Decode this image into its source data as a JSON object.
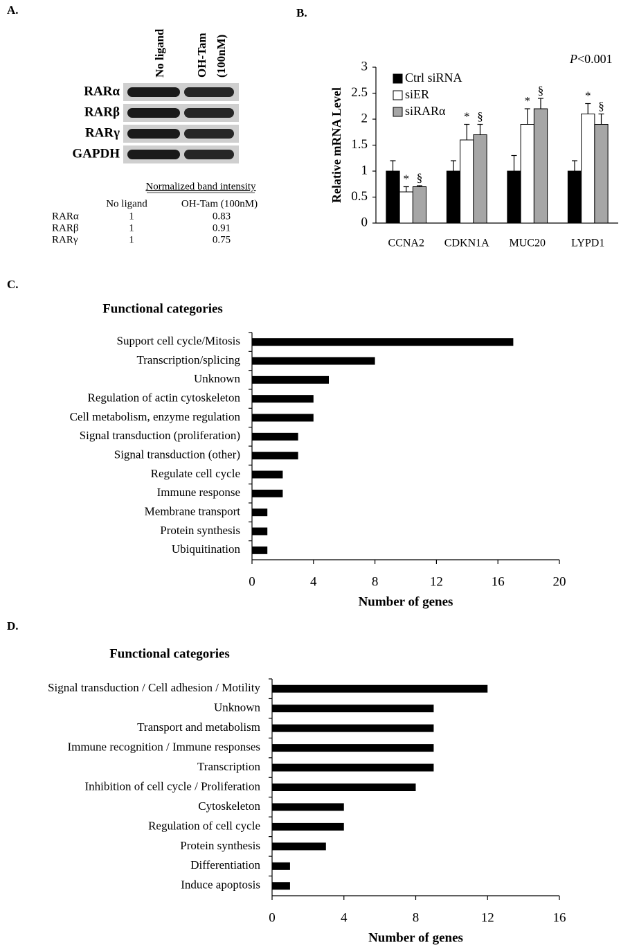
{
  "panel_a": {
    "label": "A.",
    "lanes": [
      [
        "No ligand"
      ],
      [
        "OH-Tam",
        "(100nM)"
      ]
    ],
    "blot_rows": [
      "RARα",
      "RARβ",
      "RARγ",
      "GAPDH"
    ],
    "table": {
      "title": "Normalized band intensity",
      "columns": [
        "No ligand",
        "OH-Tam (100nM)"
      ],
      "rows": [
        [
          "RARα",
          1,
          0.83
        ],
        [
          "RARβ",
          1,
          0.91
        ],
        [
          "RARγ",
          1,
          0.75
        ]
      ]
    }
  },
  "chart_data": [
    {
      "type": "bar",
      "panel_label": "B.",
      "ylabel": "Relative mRNA Level",
      "annotation": [
        "P",
        "<0.001"
      ],
      "categories": [
        "CCNA2",
        "CDKN1A",
        "MUC20",
        "LYPD1"
      ],
      "series": [
        {
          "name": "Ctrl siRNA",
          "color": "#000000",
          "values": [
            1,
            1,
            1,
            1
          ],
          "errors": [
            0.2,
            0.2,
            0.3,
            0.2
          ]
        },
        {
          "name": "siER",
          "color": "#ffffff",
          "values": [
            0.6,
            1.6,
            1.9,
            2.1
          ],
          "errors": [
            0.1,
            0.3,
            0.3,
            0.2
          ],
          "markers": [
            "*",
            "*",
            "*",
            "*"
          ]
        },
        {
          "name": "siRARα",
          "color": "#a6a6a6",
          "values": [
            0.7,
            1.7,
            2.2,
            1.9
          ],
          "errors": [
            0.02,
            0.2,
            0.2,
            0.2
          ],
          "markers": [
            "§",
            "§",
            "§",
            "§"
          ]
        }
      ],
      "ylim": [
        0,
        3
      ],
      "yticks": [
        0,
        0.5,
        1,
        1.5,
        2,
        2.5,
        3
      ],
      "legend": "top-left"
    },
    {
      "type": "barh",
      "panel_label": "C.",
      "title": "Functional categories",
      "xlabel": "Number of genes",
      "categories": [
        "Support cell cycle/Mitosis",
        "Transcription/splicing",
        "Unknown",
        "Regulation of actin cytoskeleton",
        "Cell metabolism, enzyme regulation",
        "Signal transduction (proliferation)",
        "Signal transduction (other)",
        "Regulate cell cycle",
        "Immune response",
        "Membrane transport",
        "Protein synthesis",
        "Ubiquitination"
      ],
      "values": [
        17,
        8,
        5,
        4,
        4,
        3,
        3,
        2,
        2,
        1,
        1,
        1
      ],
      "color": "#000000",
      "xlim": [
        0,
        20
      ],
      "xticks": [
        0,
        4,
        8,
        12,
        16,
        20
      ]
    },
    {
      "type": "barh",
      "panel_label": "D.",
      "title": "Functional categories",
      "xlabel": "Number of genes",
      "categories": [
        "Signal transduction / Cell adhesion / Motility",
        "Unknown",
        "Transport and metabolism",
        "Immune recognition / Immune responses",
        "Transcription",
        "Inhibition of cell cycle / Proliferation",
        "Cytoskeleton",
        "Regulation of cell cycle",
        "Protein synthesis",
        "Differentiation",
        "Induce apoptosis"
      ],
      "values": [
        12,
        9,
        9,
        9,
        9,
        8,
        4,
        4,
        3,
        1,
        1
      ],
      "color": "#000000",
      "xlim": [
        0,
        16
      ],
      "xticks": [
        0,
        4,
        8,
        12,
        16
      ]
    }
  ]
}
